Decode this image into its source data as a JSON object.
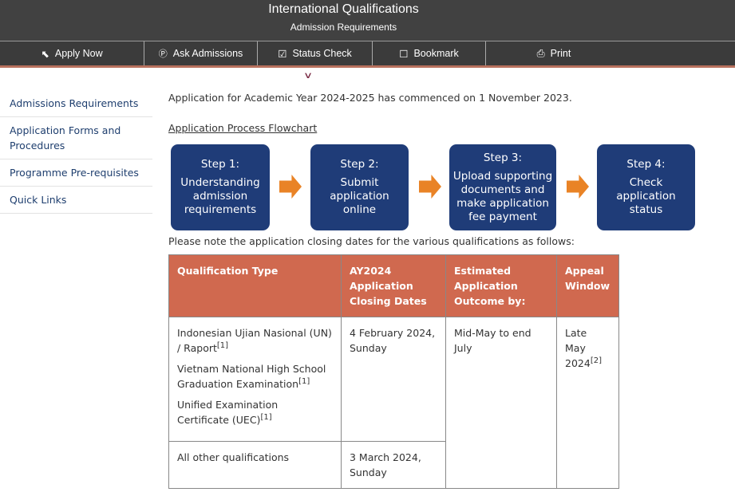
{
  "header": {
    "title": "International Qualifications",
    "subtitle": "Admission Requirements"
  },
  "nav": [
    {
      "label": "Apply Now",
      "icon": "cursor-icon"
    },
    {
      "label": "Ask Admissions",
      "icon": "question-circle-icon"
    },
    {
      "label": "Status Check",
      "icon": "checkbox-icon"
    },
    {
      "label": "Bookmark",
      "icon": "bookmark-icon"
    },
    {
      "label": "Print",
      "icon": "printer-icon"
    }
  ],
  "sidebar": [
    "Admissions Requirements",
    "Application Forms and Procedures",
    "Programme Pre-requisites",
    "Quick Links"
  ],
  "main": {
    "intro": "Application for Academic Year 2024-2025 has commenced on 1 November 2023.",
    "flowchart_link": "Application Process Flowchart",
    "steps": [
      {
        "title": "Step 1:",
        "text": "Understanding admission requirements"
      },
      {
        "title": "Step 2:",
        "text": "Submit application online"
      },
      {
        "title": "Step 3:",
        "text": "Upload supporting documents and make application fee payment"
      },
      {
        "title": "Step 4:",
        "text": "Check application status"
      }
    ],
    "note": "Please note the application closing dates for the various qualifications as follows:"
  },
  "table": {
    "headers": [
      "Qualification Type",
      "AY2024 Application Closing Dates",
      "Estimated Application Outcome by:",
      "Appeal Window"
    ],
    "row1": {
      "quals": [
        {
          "name": "Indonesian Ujian Nasional (UN) / Raport",
          "ref": "[1]"
        },
        {
          "name": "Vietnam National High School Graduation Examination",
          "ref": "[1]"
        },
        {
          "name": "Unified Examination Certificate (UEC)",
          "ref": "[1]"
        }
      ],
      "closing": "4 February 2024, Sunday",
      "outcome": "Mid-May to end July",
      "appeal": "Late May 2024",
      "appeal_ref": "[2]"
    },
    "row2": {
      "qual": "All other qualifications",
      "closing": "3 March 2024, Sunday"
    }
  },
  "colors": {
    "header_bg": "#414141",
    "step_box": "#1f3c78",
    "arrow": "#e98326",
    "table_header": "#d0694f",
    "link": "#1e3e6e"
  }
}
